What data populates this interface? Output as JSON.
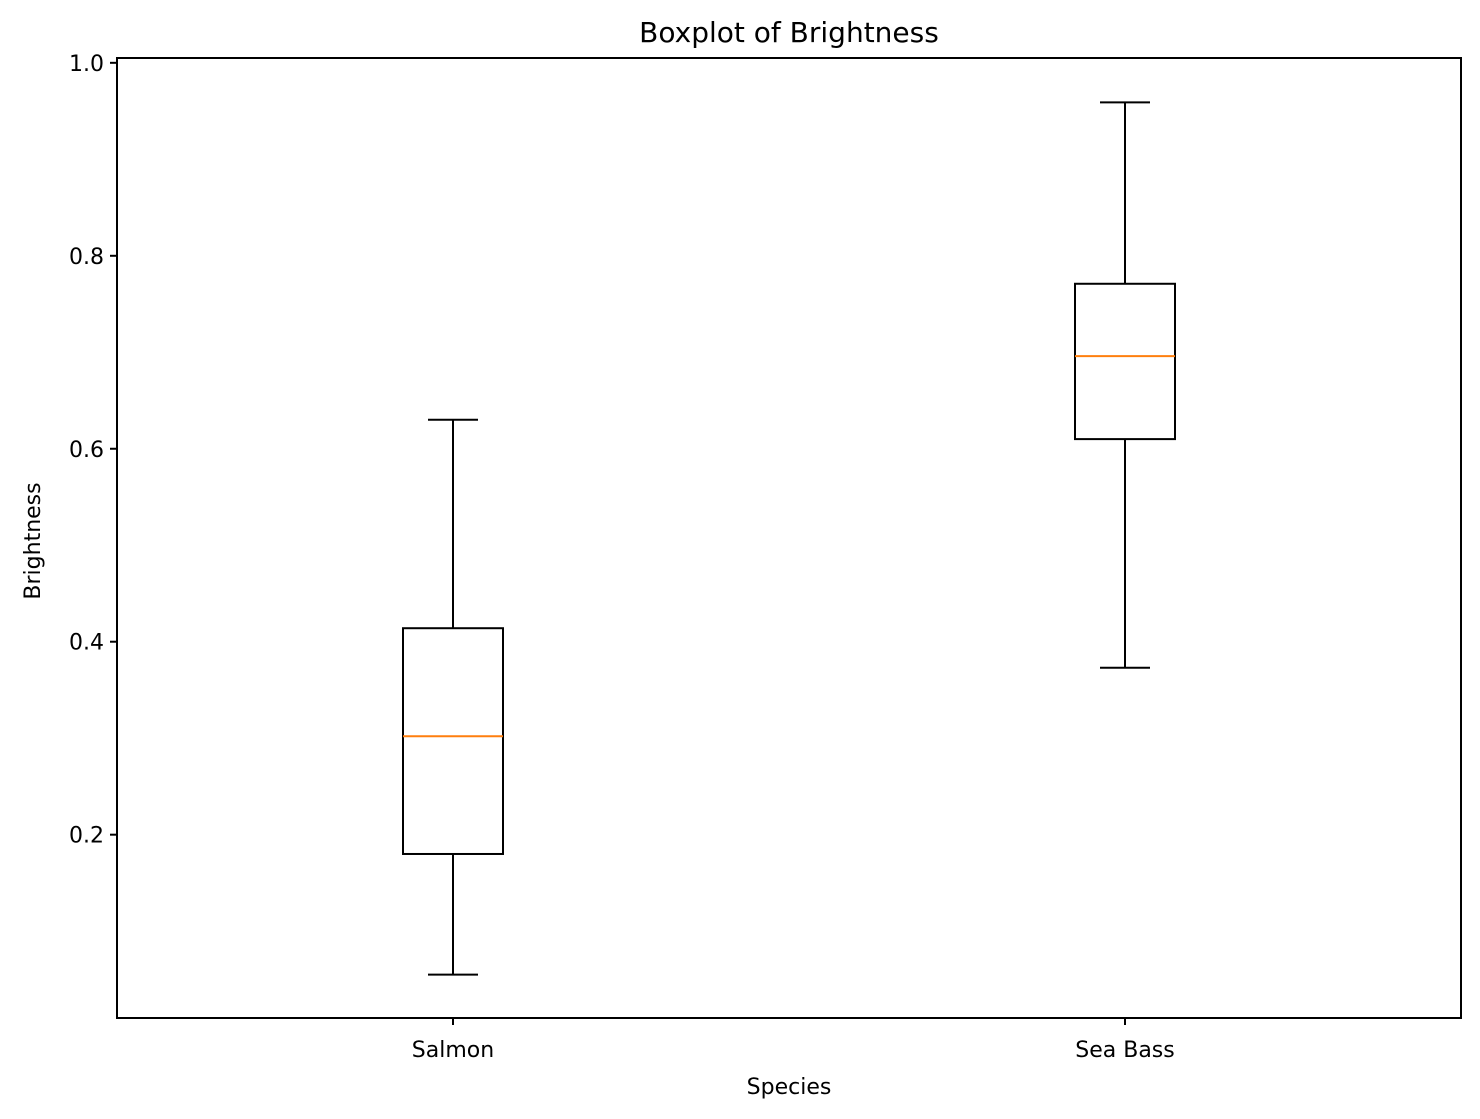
{
  "chart_data": {
    "type": "boxplot",
    "title": "Boxplot of Brightness",
    "xlabel": "Species",
    "ylabel": "Brightness",
    "categories": [
      "Salmon",
      "Sea Bass"
    ],
    "boxes": [
      {
        "category": "Salmon",
        "whisker_low": 0.055,
        "q1": 0.18,
        "median": 0.302,
        "q3": 0.414,
        "whisker_high": 0.63
      },
      {
        "category": "Sea Bass",
        "whisker_low": 0.373,
        "q1": 0.61,
        "median": 0.696,
        "q3": 0.771,
        "whisker_high": 0.959
      }
    ],
    "ylim": [
      0.01,
      1.005
    ],
    "yticks": [
      0.2,
      0.4,
      0.6,
      0.8,
      1.0
    ],
    "ytick_labels": [
      "0.2",
      "0.4",
      "0.6",
      "0.8",
      "1.0"
    ],
    "grid": false,
    "colors": {
      "box": "#000000",
      "median": "#ff7f0e",
      "whisker": "#000000"
    }
  }
}
